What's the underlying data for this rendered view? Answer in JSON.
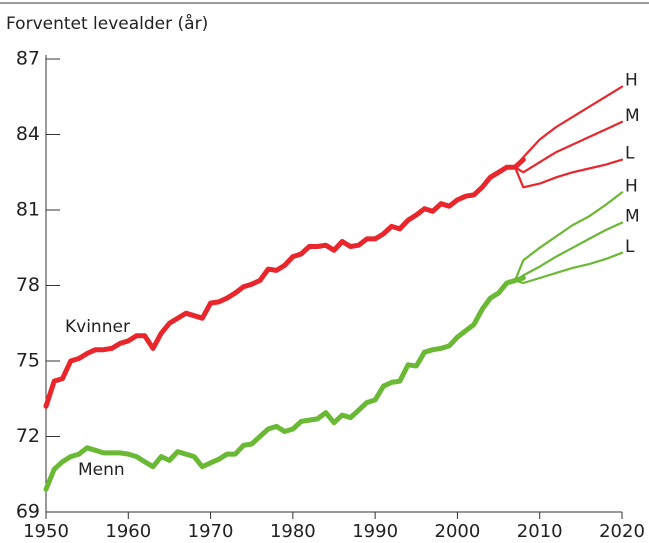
{
  "chart_data": {
    "type": "line",
    "ylabel": "Forventet levealder (år)",
    "xlim": [
      1950,
      2020
    ],
    "xticks": [
      1950,
      1960,
      1970,
      1980,
      1990,
      2000,
      2010,
      2020
    ],
    "ylim": [
      69,
      87
    ],
    "yticks": [
      69,
      72,
      75,
      78,
      81,
      84,
      87
    ],
    "series": [
      {
        "name": "Kvinner",
        "color": "#e8262b",
        "x": [
          1950,
          1951,
          1952,
          1953,
          1954,
          1955,
          1956,
          1957,
          1958,
          1959,
          1960,
          1961,
          1962,
          1963,
          1964,
          1965,
          1966,
          1967,
          1968,
          1969,
          1970,
          1971,
          1972,
          1973,
          1974,
          1975,
          1976,
          1977,
          1978,
          1979,
          1980,
          1981,
          1982,
          1983,
          1984,
          1985,
          1986,
          1987,
          1988,
          1989,
          1990,
          1991,
          1992,
          1993,
          1994,
          1995,
          1996,
          1997,
          1998,
          1999,
          2000,
          2001,
          2002,
          2003,
          2004,
          2005,
          2006,
          2007,
          2008
        ],
        "values": [
          73.2,
          74.2,
          74.3,
          75.0,
          75.1,
          75.3,
          75.45,
          75.45,
          75.5,
          75.7,
          75.8,
          76.0,
          76.0,
          75.5,
          76.1,
          76.5,
          76.7,
          76.9,
          76.8,
          76.7,
          77.3,
          77.35,
          77.5,
          77.7,
          77.95,
          78.05,
          78.2,
          78.65,
          78.6,
          78.8,
          79.15,
          79.25,
          79.55,
          79.55,
          79.6,
          79.4,
          79.75,
          79.55,
          79.6,
          79.85,
          79.85,
          80.05,
          80.35,
          80.25,
          80.6,
          80.8,
          81.05,
          80.95,
          81.25,
          81.15,
          81.4,
          81.55,
          81.6,
          81.9,
          82.3,
          82.5,
          82.7,
          82.7,
          83.0
        ]
      },
      {
        "name": "Menn",
        "color": "#6ab934",
        "x": [
          1950,
          1951,
          1952,
          1953,
          1954,
          1955,
          1956,
          1957,
          1958,
          1959,
          1960,
          1961,
          1962,
          1963,
          1964,
          1965,
          1966,
          1967,
          1968,
          1969,
          1970,
          1971,
          1972,
          1973,
          1974,
          1975,
          1976,
          1977,
          1978,
          1979,
          1980,
          1981,
          1982,
          1983,
          1984,
          1985,
          1986,
          1987,
          1988,
          1989,
          1990,
          1991,
          1992,
          1993,
          1994,
          1995,
          1996,
          1997,
          1998,
          1999,
          2000,
          2001,
          2002,
          2003,
          2004,
          2005,
          2006,
          2007,
          2008
        ],
        "values": [
          69.9,
          70.7,
          71.0,
          71.2,
          71.3,
          71.55,
          71.45,
          71.35,
          71.35,
          71.35,
          71.3,
          71.2,
          71.0,
          70.8,
          71.2,
          71.05,
          71.4,
          71.3,
          71.2,
          70.8,
          70.95,
          71.1,
          71.3,
          71.3,
          71.65,
          71.7,
          72.0,
          72.3,
          72.4,
          72.2,
          72.3,
          72.6,
          72.65,
          72.7,
          72.95,
          72.55,
          72.85,
          72.75,
          73.05,
          73.35,
          73.45,
          74.0,
          74.15,
          74.2,
          74.85,
          74.8,
          75.35,
          75.45,
          75.5,
          75.6,
          75.95,
          76.2,
          76.45,
          77.05,
          77.5,
          77.7,
          78.1,
          78.2,
          78.3
        ]
      }
    ],
    "projections": [
      {
        "name": "H",
        "color": "#e8262b",
        "x": [
          2007,
          2008,
          2010,
          2012,
          2014,
          2016,
          2018,
          2020
        ],
        "values": [
          82.7,
          83.1,
          83.8,
          84.3,
          84.7,
          85.1,
          85.5,
          85.9
        ]
      },
      {
        "name": "M",
        "color": "#e8262b",
        "x": [
          2007,
          2008,
          2010,
          2012,
          2014,
          2016,
          2018,
          2020
        ],
        "values": [
          82.7,
          82.5,
          82.9,
          83.3,
          83.6,
          83.9,
          84.2,
          84.5
        ]
      },
      {
        "name": "L",
        "color": "#e8262b",
        "x": [
          2007,
          2008,
          2010,
          2012,
          2014,
          2016,
          2018,
          2020
        ],
        "values": [
          82.7,
          81.9,
          82.05,
          82.3,
          82.5,
          82.65,
          82.8,
          83.0
        ]
      },
      {
        "name": "H",
        "color": "#6ab934",
        "x": [
          2007,
          2008,
          2010,
          2012,
          2014,
          2016,
          2018,
          2020
        ],
        "values": [
          78.2,
          79.0,
          79.5,
          79.95,
          80.4,
          80.75,
          81.2,
          81.7
        ]
      },
      {
        "name": "M",
        "color": "#6ab934",
        "x": [
          2007,
          2008,
          2010,
          2012,
          2014,
          2016,
          2018,
          2020
        ],
        "values": [
          78.2,
          78.4,
          78.75,
          79.15,
          79.5,
          79.85,
          80.2,
          80.5
        ]
      },
      {
        "name": "L",
        "color": "#6ab934",
        "x": [
          2007,
          2008,
          2010,
          2012,
          2014,
          2016,
          2018,
          2020
        ],
        "values": [
          78.2,
          78.1,
          78.3,
          78.5,
          78.7,
          78.85,
          79.05,
          79.3
        ]
      }
    ]
  }
}
